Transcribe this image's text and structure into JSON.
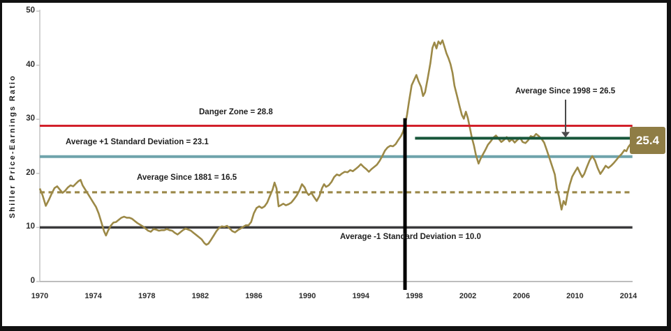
{
  "chart_data": {
    "type": "line",
    "title": "",
    "xlabel": "",
    "ylabel": "Shiller Price-Earnings Ratio",
    "xlim": [
      1970,
      2014.3
    ],
    "ylim": [
      0,
      50
    ],
    "grid": false,
    "x_ticks": [
      1970,
      1974,
      1978,
      1982,
      1986,
      1990,
      1994,
      1998,
      2002,
      2006,
      2010,
      2014
    ],
    "y_ticks": [
      0,
      10,
      20,
      30,
      40,
      50
    ],
    "series": [
      {
        "name": "Shiller Price-Earnings Ratio",
        "color": "#9c8947",
        "points": [
          [
            1970.0,
            17.2
          ],
          [
            1970.2,
            16.0
          ],
          [
            1970.45,
            14.0
          ],
          [
            1970.7,
            15.2
          ],
          [
            1970.9,
            16.3
          ],
          [
            1971.1,
            17.3
          ],
          [
            1971.3,
            17.6
          ],
          [
            1971.5,
            17.0
          ],
          [
            1971.7,
            16.4
          ],
          [
            1971.9,
            16.8
          ],
          [
            1972.1,
            17.4
          ],
          [
            1972.3,
            17.8
          ],
          [
            1972.5,
            17.6
          ],
          [
            1972.7,
            18.1
          ],
          [
            1972.9,
            18.6
          ],
          [
            1973.05,
            18.8
          ],
          [
            1973.2,
            17.8
          ],
          [
            1973.4,
            17.0
          ],
          [
            1973.6,
            16.2
          ],
          [
            1973.8,
            15.4
          ],
          [
            1974.0,
            14.6
          ],
          [
            1974.2,
            13.8
          ],
          [
            1974.4,
            12.6
          ],
          [
            1974.6,
            11.0
          ],
          [
            1974.8,
            9.3
          ],
          [
            1974.95,
            8.5
          ],
          [
            1975.1,
            9.4
          ],
          [
            1975.3,
            10.3
          ],
          [
            1975.5,
            10.9
          ],
          [
            1975.7,
            11.0
          ],
          [
            1975.9,
            11.4
          ],
          [
            1976.1,
            11.8
          ],
          [
            1976.3,
            12.0
          ],
          [
            1976.5,
            11.8
          ],
          [
            1976.7,
            11.8
          ],
          [
            1976.9,
            11.6
          ],
          [
            1977.1,
            11.2
          ],
          [
            1977.3,
            10.8
          ],
          [
            1977.5,
            10.5
          ],
          [
            1977.7,
            10.2
          ],
          [
            1977.9,
            9.8
          ],
          [
            1978.1,
            9.4
          ],
          [
            1978.3,
            9.2
          ],
          [
            1978.5,
            9.7
          ],
          [
            1978.7,
            9.6
          ],
          [
            1978.9,
            9.4
          ],
          [
            1979.1,
            9.5
          ],
          [
            1979.3,
            9.5
          ],
          [
            1979.5,
            9.7
          ],
          [
            1979.7,
            9.5
          ],
          [
            1979.9,
            9.4
          ],
          [
            1980.1,
            9.0
          ],
          [
            1980.3,
            8.7
          ],
          [
            1980.5,
            9.1
          ],
          [
            1980.7,
            9.5
          ],
          [
            1980.9,
            9.8
          ],
          [
            1981.1,
            9.6
          ],
          [
            1981.3,
            9.4
          ],
          [
            1981.5,
            9.0
          ],
          [
            1981.7,
            8.6
          ],
          [
            1981.9,
            8.2
          ],
          [
            1982.1,
            7.8
          ],
          [
            1982.3,
            7.1
          ],
          [
            1982.45,
            6.8
          ],
          [
            1982.6,
            7.0
          ],
          [
            1982.8,
            7.7
          ],
          [
            1983.0,
            8.5
          ],
          [
            1983.2,
            9.3
          ],
          [
            1983.4,
            9.9
          ],
          [
            1983.6,
            10.2
          ],
          [
            1983.8,
            10.1
          ],
          [
            1984.0,
            10.3
          ],
          [
            1984.2,
            9.8
          ],
          [
            1984.4,
            9.3
          ],
          [
            1984.6,
            9.1
          ],
          [
            1984.8,
            9.5
          ],
          [
            1985.0,
            9.8
          ],
          [
            1985.2,
            10.1
          ],
          [
            1985.4,
            10.4
          ],
          [
            1985.6,
            10.4
          ],
          [
            1985.8,
            11.0
          ],
          [
            1986.0,
            12.6
          ],
          [
            1986.2,
            13.6
          ],
          [
            1986.4,
            13.9
          ],
          [
            1986.6,
            13.6
          ],
          [
            1986.8,
            13.9
          ],
          [
            1987.0,
            14.6
          ],
          [
            1987.2,
            15.8
          ],
          [
            1987.4,
            17.0
          ],
          [
            1987.55,
            18.3
          ],
          [
            1987.7,
            17.2
          ],
          [
            1987.85,
            13.9
          ],
          [
            1988.0,
            14.1
          ],
          [
            1988.2,
            14.4
          ],
          [
            1988.4,
            14.1
          ],
          [
            1988.6,
            14.3
          ],
          [
            1988.8,
            14.6
          ],
          [
            1989.0,
            15.2
          ],
          [
            1989.2,
            15.9
          ],
          [
            1989.4,
            16.8
          ],
          [
            1989.6,
            18.0
          ],
          [
            1989.8,
            17.4
          ],
          [
            1989.95,
            16.5
          ],
          [
            1990.1,
            16.0
          ],
          [
            1990.3,
            16.4
          ],
          [
            1990.5,
            15.6
          ],
          [
            1990.7,
            14.9
          ],
          [
            1990.9,
            15.8
          ],
          [
            1991.1,
            17.3
          ],
          [
            1991.25,
            18.0
          ],
          [
            1991.4,
            17.5
          ],
          [
            1991.6,
            17.8
          ],
          [
            1991.8,
            18.4
          ],
          [
            1992.0,
            19.3
          ],
          [
            1992.2,
            19.8
          ],
          [
            1992.4,
            19.6
          ],
          [
            1992.6,
            20.0
          ],
          [
            1992.8,
            20.3
          ],
          [
            1993.0,
            20.2
          ],
          [
            1993.2,
            20.6
          ],
          [
            1993.4,
            20.4
          ],
          [
            1993.6,
            20.8
          ],
          [
            1993.8,
            21.2
          ],
          [
            1994.0,
            21.7
          ],
          [
            1994.2,
            21.2
          ],
          [
            1994.4,
            20.8
          ],
          [
            1994.6,
            20.3
          ],
          [
            1994.8,
            20.8
          ],
          [
            1995.0,
            21.2
          ],
          [
            1995.2,
            21.6
          ],
          [
            1995.4,
            22.3
          ],
          [
            1995.6,
            23.2
          ],
          [
            1995.8,
            24.2
          ],
          [
            1996.0,
            24.8
          ],
          [
            1996.2,
            25.1
          ],
          [
            1996.4,
            25.0
          ],
          [
            1996.6,
            25.4
          ],
          [
            1996.8,
            26.2
          ],
          [
            1997.0,
            26.9
          ],
          [
            1997.15,
            27.7
          ],
          [
            1997.3,
            28.9
          ],
          [
            1997.45,
            30.8
          ],
          [
            1997.6,
            33.3
          ],
          [
            1997.8,
            36.3
          ],
          [
            1998.0,
            37.4
          ],
          [
            1998.15,
            38.2
          ],
          [
            1998.3,
            37.1
          ],
          [
            1998.5,
            36.0
          ],
          [
            1998.65,
            34.3
          ],
          [
            1998.8,
            35.0
          ],
          [
            1999.0,
            37.6
          ],
          [
            1999.2,
            40.4
          ],
          [
            1999.35,
            43.2
          ],
          [
            1999.5,
            44.2
          ],
          [
            1999.65,
            43.1
          ],
          [
            1999.8,
            44.4
          ],
          [
            1999.95,
            43.9
          ],
          [
            2000.1,
            44.6
          ],
          [
            2000.25,
            43.4
          ],
          [
            2000.4,
            42.2
          ],
          [
            2000.55,
            41.3
          ],
          [
            2000.7,
            40.2
          ],
          [
            2000.85,
            38.6
          ],
          [
            2001.0,
            36.2
          ],
          [
            2001.2,
            34.2
          ],
          [
            2001.4,
            32.2
          ],
          [
            2001.55,
            30.8
          ],
          [
            2001.7,
            30.1
          ],
          [
            2001.85,
            31.4
          ],
          [
            2002.0,
            30.2
          ],
          [
            2002.15,
            28.4
          ],
          [
            2002.3,
            26.6
          ],
          [
            2002.45,
            25.2
          ],
          [
            2002.6,
            23.4
          ],
          [
            2002.8,
            21.8
          ],
          [
            2002.95,
            22.7
          ],
          [
            2003.1,
            23.4
          ],
          [
            2003.3,
            24.3
          ],
          [
            2003.5,
            25.3
          ],
          [
            2003.7,
            25.9
          ],
          [
            2003.9,
            26.6
          ],
          [
            2004.1,
            27.0
          ],
          [
            2004.3,
            26.4
          ],
          [
            2004.5,
            25.8
          ],
          [
            2004.7,
            26.2
          ],
          [
            2004.9,
            26.7
          ],
          [
            2005.1,
            25.9
          ],
          [
            2005.3,
            26.3
          ],
          [
            2005.5,
            25.7
          ],
          [
            2005.7,
            26.2
          ],
          [
            2005.9,
            26.6
          ],
          [
            2006.1,
            25.8
          ],
          [
            2006.3,
            25.6
          ],
          [
            2006.5,
            26.1
          ],
          [
            2006.7,
            26.9
          ],
          [
            2006.9,
            26.7
          ],
          [
            2007.1,
            27.3
          ],
          [
            2007.3,
            26.9
          ],
          [
            2007.5,
            26.4
          ],
          [
            2007.7,
            25.7
          ],
          [
            2007.9,
            24.3
          ],
          [
            2008.1,
            22.8
          ],
          [
            2008.3,
            21.3
          ],
          [
            2008.5,
            19.8
          ],
          [
            2008.65,
            17.2
          ],
          [
            2008.8,
            15.8
          ],
          [
            2009.0,
            13.3
          ],
          [
            2009.15,
            14.9
          ],
          [
            2009.3,
            14.2
          ],
          [
            2009.45,
            16.2
          ],
          [
            2009.6,
            17.8
          ],
          [
            2009.8,
            19.4
          ],
          [
            2010.0,
            20.3
          ],
          [
            2010.2,
            21.1
          ],
          [
            2010.4,
            20.0
          ],
          [
            2010.55,
            19.3
          ],
          [
            2010.7,
            19.9
          ],
          [
            2010.9,
            21.2
          ],
          [
            2011.1,
            22.4
          ],
          [
            2011.3,
            23.2
          ],
          [
            2011.5,
            22.4
          ],
          [
            2011.7,
            21.0
          ],
          [
            2011.9,
            19.9
          ],
          [
            2012.1,
            20.6
          ],
          [
            2012.3,
            21.4
          ],
          [
            2012.5,
            21.0
          ],
          [
            2012.7,
            21.4
          ],
          [
            2012.9,
            21.9
          ],
          [
            2013.1,
            22.5
          ],
          [
            2013.3,
            23.1
          ],
          [
            2013.5,
            23.6
          ],
          [
            2013.7,
            24.3
          ],
          [
            2013.85,
            24.1
          ],
          [
            2014.0,
            24.9
          ],
          [
            2014.15,
            25.4
          ]
        ]
      }
    ],
    "reference_lines": [
      {
        "label": "Danger Zone = 28.8",
        "value": 28.8,
        "color": "#d2202a",
        "style": "solid",
        "width": 3,
        "x_start": 1970,
        "x_end": 2014.3,
        "layer": "above"
      },
      {
        "label": "Average +1 Standard Deviation = 23.1",
        "value": 23.1,
        "color": "#6fa3ab",
        "style": "solid",
        "width": 4,
        "x_start": 1970,
        "x_end": 2014.3,
        "layer": "below"
      },
      {
        "label": "Average Since 1881 = 16.5",
        "value": 16.5,
        "color": "#9a8747",
        "style": "dashed",
        "width": 3.2,
        "x_start": 1970,
        "x_end": 2014.1,
        "layer": "below"
      },
      {
        "label": "Average -1 Standard Deviation = 10.0",
        "value": 10.0,
        "color": "#3a3a3c",
        "style": "solid",
        "width": 3.5,
        "x_start": 1970,
        "x_end": 2014.3,
        "layer": "below"
      },
      {
        "label": "Average Since 1998 = 26.5",
        "value": 26.5,
        "color": "#17563a",
        "style": "solid",
        "width": 4,
        "x_start": 1998.05,
        "x_end": 2014.35,
        "layer": "above"
      }
    ],
    "vertical_marker": {
      "x": 1997.3,
      "y_top": 30.2,
      "color": "#000000",
      "width": 5
    },
    "end_badge": {
      "label": "25.4",
      "fill": "#8f7d45",
      "text_color": "#ffffff"
    },
    "legend": "none"
  }
}
